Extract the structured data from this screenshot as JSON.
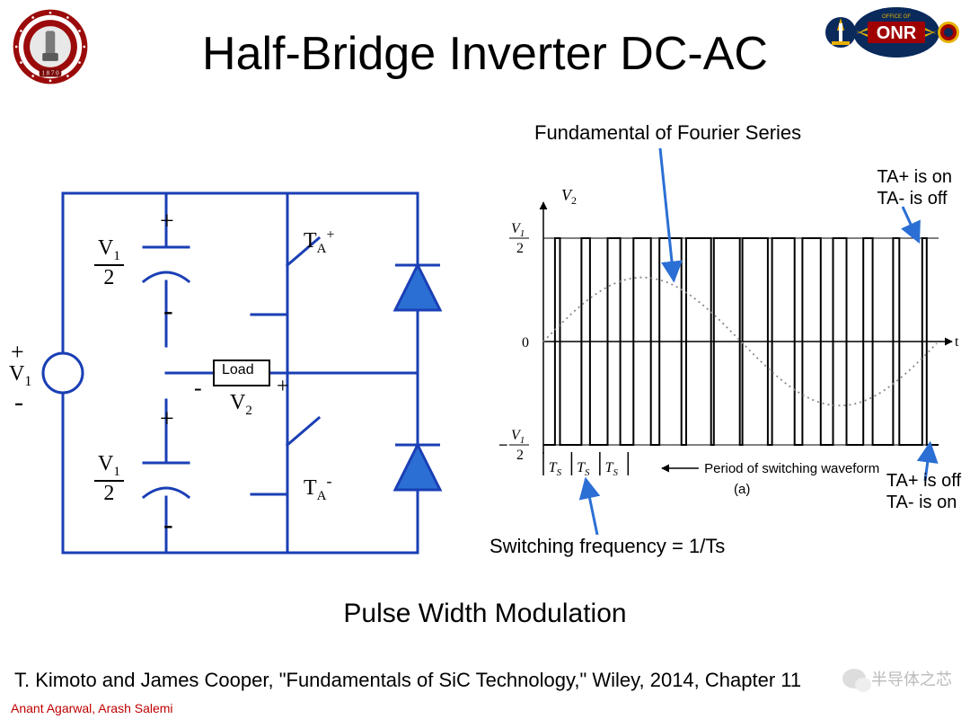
{
  "title": "Half-Bridge Inverter DC-AC",
  "subtitle": "Pulse Width Modulation",
  "citation": "T. Kimoto and James Cooper, \"Fundamentals of SiC Technology,\" Wiley, 2014, Chapter 11",
  "authors": "Anant Agarwal, Arash Salemi",
  "watermark": "半导体之芯",
  "logos": {
    "left": {
      "outer_color": "#9b0b0b",
      "inner_color": "#4a4a4a",
      "text": "1870"
    },
    "right": {
      "bg": "#0a2a5c",
      "accent": "#e8b000",
      "text": "ONR",
      "subtext": "OFFICE OF"
    }
  },
  "circuit": {
    "wire_color": "#1a3fb5",
    "wire_width": 3,
    "diode_fill": "#2b6fd4",
    "diode_stroke": "#1a3fb5",
    "text_color": "#000000",
    "font_size": 24,
    "V1": "V",
    "V1_sub": "1",
    "V1_half_top": "V",
    "V1_half_top_sub": "1",
    "V1_half_denom": "2",
    "TA_plus": "T",
    "TA_plus_sub": "A",
    "TA_plus_sup": "+",
    "TA_minus_sup": "-",
    "Load": "Load",
    "V2": "V",
    "V2_sub": "2",
    "plus": "+",
    "minus": "-"
  },
  "waveform": {
    "axis_color": "#000000",
    "square_color": "#000000",
    "sine_color": "#888888",
    "arrow_color": "#2b6fd4",
    "bg": "#ffffff",
    "ylabel": "V",
    "ylabel_sub": "2",
    "y_top": "V",
    "y_top_sub": "1",
    "y_top_denom": "2",
    "y_bot_prefix": "−",
    "zero": "0",
    "xlabel": "t",
    "Ts": "T",
    "Ts_sub": "S",
    "period_label": "Period of switching waveform",
    "fig_label": "(a)",
    "fourier": "Fundamental of Fourier Series",
    "ta_on": "TA+ is on\nTA- is off",
    "ta_off": "TA+ is off\nTA- is on",
    "switching_freq": "Switching frequency = 1/Ts",
    "n_pulses": 14,
    "pulse_widths": [
      0.18,
      0.3,
      0.45,
      0.62,
      0.78,
      0.88,
      0.92,
      0.9,
      0.8,
      0.65,
      0.48,
      0.33,
      0.22,
      0.16
    ],
    "sine_amplitude": 0.62
  }
}
